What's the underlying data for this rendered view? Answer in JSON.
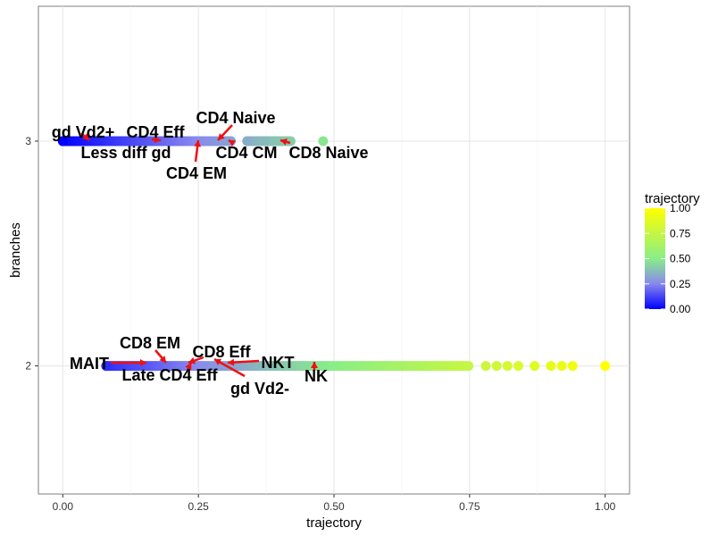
{
  "chart_data": {
    "type": "scatter",
    "title": "",
    "xlabel": "trajectory",
    "ylabel": "branches",
    "xlim": [
      -0.045,
      1.045
    ],
    "ylim": [
      1.43,
      3.6
    ],
    "x_ticks": [
      "0.00",
      "0.25",
      "0.50",
      "0.75",
      "1.00"
    ],
    "y_ticks": [
      "2",
      "3"
    ],
    "grid": true,
    "colorbar": {
      "title": "trajectory",
      "ticks": [
        "0.00",
        "0.25",
        "0.50",
        "0.75",
        "1.00"
      ],
      "colors": [
        "#0000ff",
        "#8888ee",
        "#88ee88",
        "#ffff00"
      ],
      "placement": "right"
    },
    "branches": [
      {
        "branch": 3,
        "dense_ranges": [
          [
            0.0,
            0.31
          ],
          [
            0.34,
            0.42
          ]
        ],
        "points": [
          0.0,
          0.31,
          0.34,
          0.37,
          0.4,
          0.41,
          0.48
        ]
      },
      {
        "branch": 2,
        "dense_ranges": [
          [
            0.08,
            0.75
          ]
        ],
        "points": [
          0.08,
          0.78,
          0.8,
          0.82,
          0.84,
          0.87,
          0.9,
          0.92,
          0.94,
          1.0
        ]
      }
    ],
    "annotations": [
      {
        "label": "gd Vd2+",
        "x": 0.04,
        "y": 3
      },
      {
        "label": "CD4 Eff",
        "x": 0.18,
        "y": 3
      },
      {
        "label": "CD4 Naive",
        "x": 0.28,
        "y": 3
      },
      {
        "label": "Less diff gd",
        "x": 0.04,
        "y": 3
      },
      {
        "label": "CD4 EM",
        "x": 0.25,
        "y": 3
      },
      {
        "label": "CD4 CM",
        "x": 0.3,
        "y": 3
      },
      {
        "label": "CD8 Naive",
        "x": 0.41,
        "y": 3
      },
      {
        "label": "MAIT",
        "x": 0.08,
        "y": 2
      },
      {
        "label": "CD8 EM",
        "x": 0.17,
        "y": 2
      },
      {
        "label": "CD8 Eff",
        "x": 0.23,
        "y": 2
      },
      {
        "label": "NKT",
        "x": 0.3,
        "y": 2
      },
      {
        "label": "Late CD4 Eff",
        "x": 0.25,
        "y": 2
      },
      {
        "label": "gd Vd2-",
        "x": 0.28,
        "y": 2
      },
      {
        "label": "NK",
        "x": 0.46,
        "y": 2
      }
    ]
  }
}
